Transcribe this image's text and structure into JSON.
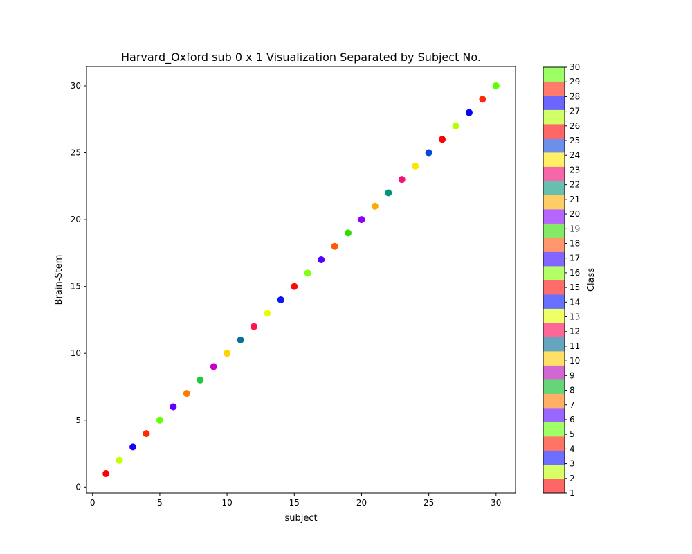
{
  "chart_data": {
    "type": "scatter",
    "title": "Harvard_Oxford sub 0 x 1 Visualization Separated by Subject No.",
    "xlabel": "subject",
    "ylabel": "Brain-Stem",
    "xlim": [
      -0.45,
      31.45
    ],
    "ylim": [
      -0.45,
      31.45
    ],
    "xticks": [
      0,
      5,
      10,
      15,
      20,
      25,
      30
    ],
    "yticks": [
      0,
      5,
      10,
      15,
      20,
      25,
      30
    ],
    "grid": false,
    "legend": "none",
    "points": [
      {
        "x": 1,
        "y": 1,
        "class": 1
      },
      {
        "x": 2,
        "y": 2,
        "class": 2
      },
      {
        "x": 3,
        "y": 3,
        "class": 3
      },
      {
        "x": 4,
        "y": 4,
        "class": 4
      },
      {
        "x": 5,
        "y": 5,
        "class": 5
      },
      {
        "x": 6,
        "y": 6,
        "class": 6
      },
      {
        "x": 7,
        "y": 7,
        "class": 7
      },
      {
        "x": 8,
        "y": 8,
        "class": 8
      },
      {
        "x": 9,
        "y": 9,
        "class": 9
      },
      {
        "x": 10,
        "y": 10,
        "class": 10
      },
      {
        "x": 11,
        "y": 11,
        "class": 11
      },
      {
        "x": 12,
        "y": 12,
        "class": 12
      },
      {
        "x": 13,
        "y": 13,
        "class": 13
      },
      {
        "x": 14,
        "y": 14,
        "class": 14
      },
      {
        "x": 15,
        "y": 15,
        "class": 15
      },
      {
        "x": 16,
        "y": 16,
        "class": 16
      },
      {
        "x": 17,
        "y": 17,
        "class": 17
      },
      {
        "x": 18,
        "y": 18,
        "class": 18
      },
      {
        "x": 19,
        "y": 19,
        "class": 19
      },
      {
        "x": 20,
        "y": 20,
        "class": 20
      },
      {
        "x": 21,
        "y": 21,
        "class": 21
      },
      {
        "x": 22,
        "y": 22,
        "class": 22
      },
      {
        "x": 23,
        "y": 23,
        "class": 23
      },
      {
        "x": 24,
        "y": 24,
        "class": 24
      },
      {
        "x": 25,
        "y": 25,
        "class": 25
      },
      {
        "x": 26,
        "y": 26,
        "class": 26
      },
      {
        "x": 27,
        "y": 27,
        "class": 27
      },
      {
        "x": 28,
        "y": 28,
        "class": 28
      },
      {
        "x": 29,
        "y": 29,
        "class": 29
      },
      {
        "x": 30,
        "y": 30,
        "class": 30
      }
    ],
    "point_colors": [
      "#ff0000",
      "#c8ff00",
      "#1a00ff",
      "#ff2a00",
      "#66ff00",
      "#6600ff",
      "#ff7a00",
      "#20c840",
      "#c800c8",
      "#ffd200",
      "#0a6e96",
      "#ff1450",
      "#e6ff00",
      "#0a14ff",
      "#ff0a0a",
      "#82ff14",
      "#5000ff",
      "#ff5a0a",
      "#32dc00",
      "#8c00ff",
      "#ffaa00",
      "#009678",
      "#f01478",
      "#ffe600",
      "#0a46dc",
      "#ff0000",
      "#b4ff00",
      "#0a00ff",
      "#ff280a",
      "#5aff00"
    ],
    "colorbar": {
      "label": "Class",
      "min": 1,
      "max": 30,
      "ticks": [
        1,
        2,
        3,
        4,
        5,
        6,
        7,
        8,
        9,
        10,
        11,
        12,
        13,
        14,
        15,
        16,
        17,
        18,
        19,
        20,
        21,
        22,
        23,
        24,
        25,
        26,
        27,
        28,
        29,
        30
      ],
      "colors": [
        "#ff6666",
        "#d9ff66",
        "#6f6fff",
        "#ff7466",
        "#a0ff66",
        "#9966ff",
        "#ffaf66",
        "#66d479",
        "#d466d4",
        "#ffe066",
        "#66a5c0",
        "#ff6796",
        "#efff66",
        "#6871ff",
        "#ff6c6c",
        "#b4ff66",
        "#8266ff",
        "#ff966c",
        "#84ea66",
        "#b466ff",
        "#ffcd66",
        "#66c0ad",
        "#f567a8",
        "#fff066",
        "#6c90ea",
        "#ff6666",
        "#d2ff66",
        "#6c66ff",
        "#ff7c6c",
        "#9cff66"
      ]
    }
  }
}
